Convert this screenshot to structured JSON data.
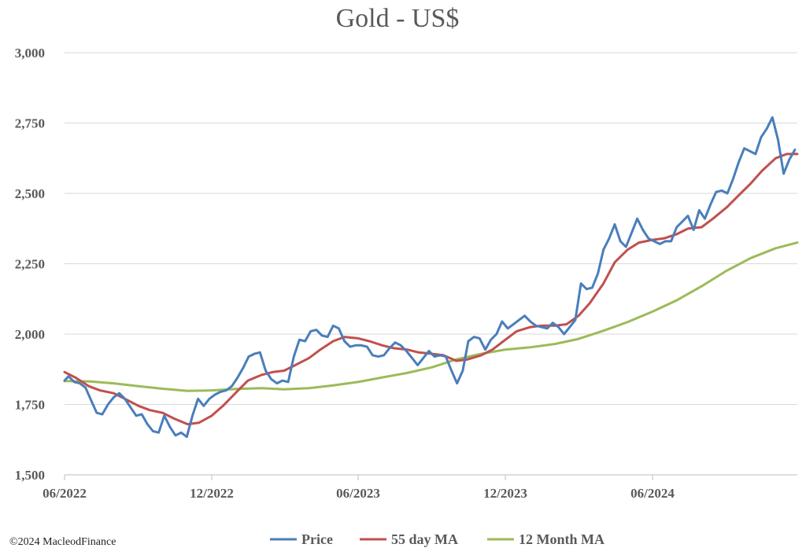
{
  "copyright": "©2024 MacleodFinance",
  "chart_data": {
    "type": "line",
    "title": "Gold - US$",
    "xlabel": "",
    "ylabel": "",
    "ylim": [
      1500,
      3000
    ],
    "y_ticks": [
      {
        "value": 1500,
        "label": "1,500"
      },
      {
        "value": 1750,
        "label": "1,750"
      },
      {
        "value": 2000,
        "label": "2,000"
      },
      {
        "value": 2250,
        "label": "2,250"
      },
      {
        "value": 2500,
        "label": "2,500"
      },
      {
        "value": 2750,
        "label": "2,750"
      },
      {
        "value": 3000,
        "label": "3,000"
      }
    ],
    "x_range": [
      "2022-06-01",
      "2024-11-28"
    ],
    "x_ticks": [
      {
        "date": "2022-06-01",
        "label": "06/2022"
      },
      {
        "date": "2022-12-01",
        "label": "12/2022"
      },
      {
        "date": "2023-06-01",
        "label": "06/2023"
      },
      {
        "date": "2023-12-01",
        "label": "12/2023"
      },
      {
        "date": "2024-06-01",
        "label": "06/2024"
      }
    ],
    "grid": "horizontal",
    "legend_position": "bottom",
    "series": [
      {
        "name": "Price",
        "color": "#4a7ebb",
        "points": [
          [
            "2022-06-01",
            1835
          ],
          [
            "2022-06-06",
            1850
          ],
          [
            "2022-06-13",
            1830
          ],
          [
            "2022-06-20",
            1825
          ],
          [
            "2022-06-27",
            1810
          ],
          [
            "2022-07-04",
            1765
          ],
          [
            "2022-07-11",
            1720
          ],
          [
            "2022-07-18",
            1715
          ],
          [
            "2022-07-25",
            1750
          ],
          [
            "2022-08-01",
            1775
          ],
          [
            "2022-08-08",
            1790
          ],
          [
            "2022-08-15",
            1770
          ],
          [
            "2022-08-22",
            1740
          ],
          [
            "2022-08-29",
            1710
          ],
          [
            "2022-09-05",
            1715
          ],
          [
            "2022-09-12",
            1680
          ],
          [
            "2022-09-19",
            1655
          ],
          [
            "2022-09-26",
            1650
          ],
          [
            "2022-10-03",
            1710
          ],
          [
            "2022-10-10",
            1670
          ],
          [
            "2022-10-17",
            1640
          ],
          [
            "2022-10-24",
            1650
          ],
          [
            "2022-10-31",
            1635
          ],
          [
            "2022-11-07",
            1710
          ],
          [
            "2022-11-14",
            1770
          ],
          [
            "2022-11-21",
            1745
          ],
          [
            "2022-11-28",
            1770
          ],
          [
            "2022-12-05",
            1785
          ],
          [
            "2022-12-12",
            1795
          ],
          [
            "2022-12-19",
            1800
          ],
          [
            "2022-12-26",
            1815
          ],
          [
            "2023-01-02",
            1845
          ],
          [
            "2023-01-09",
            1880
          ],
          [
            "2023-01-16",
            1920
          ],
          [
            "2023-01-23",
            1930
          ],
          [
            "2023-01-30",
            1935
          ],
          [
            "2023-02-06",
            1870
          ],
          [
            "2023-02-13",
            1840
          ],
          [
            "2023-02-20",
            1825
          ],
          [
            "2023-02-27",
            1835
          ],
          [
            "2023-03-06",
            1830
          ],
          [
            "2023-03-13",
            1920
          ],
          [
            "2023-03-20",
            1980
          ],
          [
            "2023-03-27",
            1975
          ],
          [
            "2023-04-03",
            2010
          ],
          [
            "2023-04-10",
            2015
          ],
          [
            "2023-04-17",
            1995
          ],
          [
            "2023-04-24",
            1990
          ],
          [
            "2023-05-01",
            2030
          ],
          [
            "2023-05-08",
            2020
          ],
          [
            "2023-05-15",
            1975
          ],
          [
            "2023-05-22",
            1955
          ],
          [
            "2023-05-29",
            1960
          ],
          [
            "2023-06-05",
            1960
          ],
          [
            "2023-06-12",
            1955
          ],
          [
            "2023-06-19",
            1925
          ],
          [
            "2023-06-26",
            1920
          ],
          [
            "2023-07-03",
            1925
          ],
          [
            "2023-07-10",
            1950
          ],
          [
            "2023-07-17",
            1970
          ],
          [
            "2023-07-24",
            1960
          ],
          [
            "2023-07-31",
            1940
          ],
          [
            "2023-08-07",
            1915
          ],
          [
            "2023-08-14",
            1890
          ],
          [
            "2023-08-21",
            1915
          ],
          [
            "2023-08-28",
            1940
          ],
          [
            "2023-09-04",
            1920
          ],
          [
            "2023-09-11",
            1925
          ],
          [
            "2023-09-18",
            1920
          ],
          [
            "2023-09-25",
            1870
          ],
          [
            "2023-10-02",
            1825
          ],
          [
            "2023-10-09",
            1870
          ],
          [
            "2023-10-16",
            1975
          ],
          [
            "2023-10-23",
            1990
          ],
          [
            "2023-10-30",
            1985
          ],
          [
            "2023-11-06",
            1945
          ],
          [
            "2023-11-13",
            1980
          ],
          [
            "2023-11-20",
            2000
          ],
          [
            "2023-11-27",
            2045
          ],
          [
            "2023-12-04",
            2020
          ],
          [
            "2023-12-11",
            2035
          ],
          [
            "2023-12-18",
            2050
          ],
          [
            "2023-12-25",
            2065
          ],
          [
            "2024-01-01",
            2045
          ],
          [
            "2024-01-08",
            2030
          ],
          [
            "2024-01-15",
            2025
          ],
          [
            "2024-01-22",
            2020
          ],
          [
            "2024-01-29",
            2040
          ],
          [
            "2024-02-05",
            2025
          ],
          [
            "2024-02-12",
            2000
          ],
          [
            "2024-02-19",
            2025
          ],
          [
            "2024-02-26",
            2050
          ],
          [
            "2024-03-04",
            2180
          ],
          [
            "2024-03-11",
            2160
          ],
          [
            "2024-03-18",
            2165
          ],
          [
            "2024-03-25",
            2215
          ],
          [
            "2024-04-01",
            2300
          ],
          [
            "2024-04-08",
            2340
          ],
          [
            "2024-04-15",
            2390
          ],
          [
            "2024-04-22",
            2330
          ],
          [
            "2024-04-29",
            2310
          ],
          [
            "2024-05-06",
            2360
          ],
          [
            "2024-05-13",
            2410
          ],
          [
            "2024-05-20",
            2370
          ],
          [
            "2024-05-27",
            2340
          ],
          [
            "2024-06-03",
            2330
          ],
          [
            "2024-06-10",
            2320
          ],
          [
            "2024-06-17",
            2330
          ],
          [
            "2024-06-24",
            2330
          ],
          [
            "2024-07-01",
            2380
          ],
          [
            "2024-07-08",
            2400
          ],
          [
            "2024-07-15",
            2420
          ],
          [
            "2024-07-22",
            2370
          ],
          [
            "2024-07-29",
            2440
          ],
          [
            "2024-08-05",
            2410
          ],
          [
            "2024-08-12",
            2460
          ],
          [
            "2024-08-19",
            2505
          ],
          [
            "2024-08-26",
            2510
          ],
          [
            "2024-09-02",
            2500
          ],
          [
            "2024-09-09",
            2550
          ],
          [
            "2024-09-16",
            2610
          ],
          [
            "2024-09-23",
            2660
          ],
          [
            "2024-09-30",
            2650
          ],
          [
            "2024-10-07",
            2640
          ],
          [
            "2024-10-14",
            2700
          ],
          [
            "2024-10-21",
            2730
          ],
          [
            "2024-10-28",
            2770
          ],
          [
            "2024-11-04",
            2690
          ],
          [
            "2024-11-11",
            2570
          ],
          [
            "2024-11-18",
            2620
          ],
          [
            "2024-11-25",
            2655
          ]
        ]
      },
      {
        "name": "55 day MA",
        "color": "#c0504d",
        "points": [
          [
            "2022-06-01",
            1865
          ],
          [
            "2022-06-15",
            1845
          ],
          [
            "2022-07-01",
            1815
          ],
          [
            "2022-07-15",
            1800
          ],
          [
            "2022-08-01",
            1790
          ],
          [
            "2022-08-15",
            1770
          ],
          [
            "2022-09-01",
            1745
          ],
          [
            "2022-09-15",
            1730
          ],
          [
            "2022-10-01",
            1720
          ],
          [
            "2022-10-15",
            1700
          ],
          [
            "2022-11-01",
            1680
          ],
          [
            "2022-11-15",
            1685
          ],
          [
            "2022-12-01",
            1710
          ],
          [
            "2022-12-15",
            1745
          ],
          [
            "2023-01-01",
            1795
          ],
          [
            "2023-01-15",
            1835
          ],
          [
            "2023-02-01",
            1855
          ],
          [
            "2023-02-15",
            1865
          ],
          [
            "2023-03-01",
            1870
          ],
          [
            "2023-03-15",
            1890
          ],
          [
            "2023-04-01",
            1915
          ],
          [
            "2023-04-15",
            1945
          ],
          [
            "2023-05-01",
            1975
          ],
          [
            "2023-05-15",
            1990
          ],
          [
            "2023-06-01",
            1985
          ],
          [
            "2023-06-15",
            1975
          ],
          [
            "2023-07-01",
            1960
          ],
          [
            "2023-07-15",
            1950
          ],
          [
            "2023-08-01",
            1945
          ],
          [
            "2023-08-15",
            1935
          ],
          [
            "2023-09-01",
            1930
          ],
          [
            "2023-09-15",
            1925
          ],
          [
            "2023-10-01",
            1905
          ],
          [
            "2023-10-15",
            1910
          ],
          [
            "2023-11-01",
            1925
          ],
          [
            "2023-11-15",
            1945
          ],
          [
            "2023-12-01",
            1980
          ],
          [
            "2023-12-15",
            2010
          ],
          [
            "2024-01-01",
            2025
          ],
          [
            "2024-01-15",
            2030
          ],
          [
            "2024-02-01",
            2030
          ],
          [
            "2024-02-15",
            2035
          ],
          [
            "2024-03-01",
            2065
          ],
          [
            "2024-03-15",
            2110
          ],
          [
            "2024-04-01",
            2180
          ],
          [
            "2024-04-15",
            2255
          ],
          [
            "2024-05-01",
            2300
          ],
          [
            "2024-05-15",
            2325
          ],
          [
            "2024-06-01",
            2335
          ],
          [
            "2024-06-15",
            2340
          ],
          [
            "2024-07-01",
            2355
          ],
          [
            "2024-07-15",
            2375
          ],
          [
            "2024-08-01",
            2380
          ],
          [
            "2024-08-15",
            2410
          ],
          [
            "2024-09-01",
            2450
          ],
          [
            "2024-09-15",
            2490
          ],
          [
            "2024-10-01",
            2535
          ],
          [
            "2024-10-15",
            2580
          ],
          [
            "2024-11-01",
            2625
          ],
          [
            "2024-11-15",
            2640
          ],
          [
            "2024-11-28",
            2640
          ]
        ]
      },
      {
        "name": "12 Month MA",
        "color": "#9bbb59",
        "points": [
          [
            "2022-06-01",
            1833
          ],
          [
            "2022-07-01",
            1832
          ],
          [
            "2022-08-01",
            1825
          ],
          [
            "2022-09-01",
            1815
          ],
          [
            "2022-10-01",
            1806
          ],
          [
            "2022-11-01",
            1798
          ],
          [
            "2022-12-01",
            1800
          ],
          [
            "2023-01-01",
            1805
          ],
          [
            "2023-02-01",
            1808
          ],
          [
            "2023-03-01",
            1804
          ],
          [
            "2023-04-01",
            1808
          ],
          [
            "2023-05-01",
            1818
          ],
          [
            "2023-06-01",
            1830
          ],
          [
            "2023-07-01",
            1846
          ],
          [
            "2023-08-01",
            1862
          ],
          [
            "2023-09-01",
            1882
          ],
          [
            "2023-10-01",
            1910
          ],
          [
            "2023-11-01",
            1930
          ],
          [
            "2023-12-01",
            1945
          ],
          [
            "2024-01-01",
            1953
          ],
          [
            "2024-02-01",
            1965
          ],
          [
            "2024-03-01",
            1983
          ],
          [
            "2024-04-01",
            2012
          ],
          [
            "2024-05-01",
            2043
          ],
          [
            "2024-06-01",
            2080
          ],
          [
            "2024-07-01",
            2120
          ],
          [
            "2024-08-01",
            2170
          ],
          [
            "2024-09-01",
            2225
          ],
          [
            "2024-10-01",
            2270
          ],
          [
            "2024-11-01",
            2305
          ],
          [
            "2024-11-28",
            2325
          ]
        ]
      }
    ]
  }
}
